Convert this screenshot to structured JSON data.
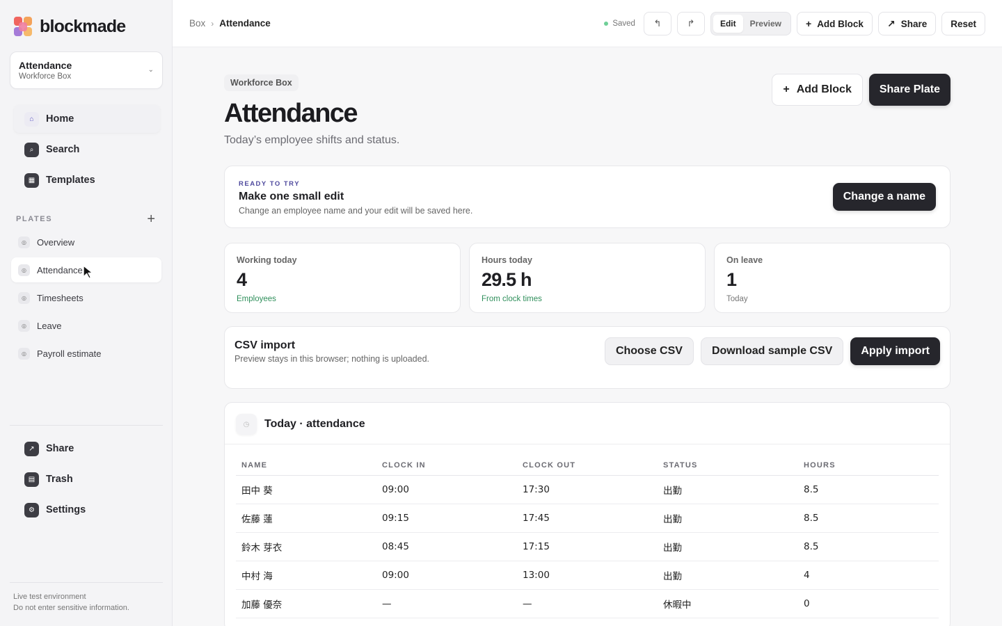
{
  "app": {
    "logo_text": "blockmade"
  },
  "box_switcher": {
    "title": "Attendance",
    "subtitle": "Workforce Box",
    "chevron_icon": "chevron-down-icon"
  },
  "sidebar": {
    "nav": [
      {
        "label": "Home",
        "icon": "home-icon"
      },
      {
        "label": "Search",
        "icon": "search-icon"
      },
      {
        "label": "Templates",
        "icon": "templates-icon"
      }
    ],
    "plates_label": "PLATES",
    "plates": [
      {
        "label": "Overview"
      },
      {
        "label": "Attendance",
        "active": true
      },
      {
        "label": "Timesheets"
      },
      {
        "label": "Leave"
      },
      {
        "label": "Payroll estimate"
      }
    ],
    "bottom": [
      {
        "label": "Share",
        "icon": "share-icon"
      },
      {
        "label": "Trash",
        "icon": "trash-icon"
      },
      {
        "label": "Settings",
        "icon": "settings-icon"
      }
    ],
    "env_note_1": "Live test environment",
    "env_note_2": "Do not enter sensitive information."
  },
  "topbar": {
    "crumb_root": "Box",
    "crumb_current": "Attendance",
    "saved": "Saved",
    "mode_edit": "Edit",
    "mode_preview": "Preview",
    "add_block": "Add Block",
    "share": "Share",
    "reset": "Reset"
  },
  "header": {
    "chip": "Workforce Box",
    "title": "Attendance",
    "subtitle": "Today’s employee shifts and status.",
    "add_block": "Add Block",
    "share_plate": "Share Plate"
  },
  "ready": {
    "kicker": "READY TO TRY",
    "title": "Make one small edit",
    "desc": "Change an employee name and your edit will be saved here.",
    "button": "Change a name"
  },
  "stats": [
    {
      "label": "Working today",
      "value": "4",
      "sub": "Employees"
    },
    {
      "label": "Hours today",
      "value": "29.5 h",
      "sub": "From clock times"
    },
    {
      "label": "On leave",
      "value": "1",
      "sub": "Today"
    }
  ],
  "csv": {
    "title": "CSV import",
    "desc": "Preview stays in this browser; nothing is uploaded.",
    "choose": "Choose CSV",
    "download": "Download sample CSV",
    "apply": "Apply import"
  },
  "table": {
    "title": "Today · attendance",
    "columns": [
      "NAME",
      "CLOCK IN",
      "CLOCK OUT",
      "STATUS",
      "HOURS"
    ],
    "rows": [
      [
        "田中 葵",
        "09:00",
        "17:30",
        "出勤",
        "8.5"
      ],
      [
        "佐藤 蓮",
        "09:15",
        "17:45",
        "出勤",
        "8.5"
      ],
      [
        "鈴木 芽衣",
        "08:45",
        "17:15",
        "出勤",
        "8.5"
      ],
      [
        "中村 海",
        "09:00",
        "13:00",
        "出勤",
        "4"
      ],
      [
        "加藤 優奈",
        "—",
        "—",
        "休暇中",
        "0"
      ]
    ]
  }
}
